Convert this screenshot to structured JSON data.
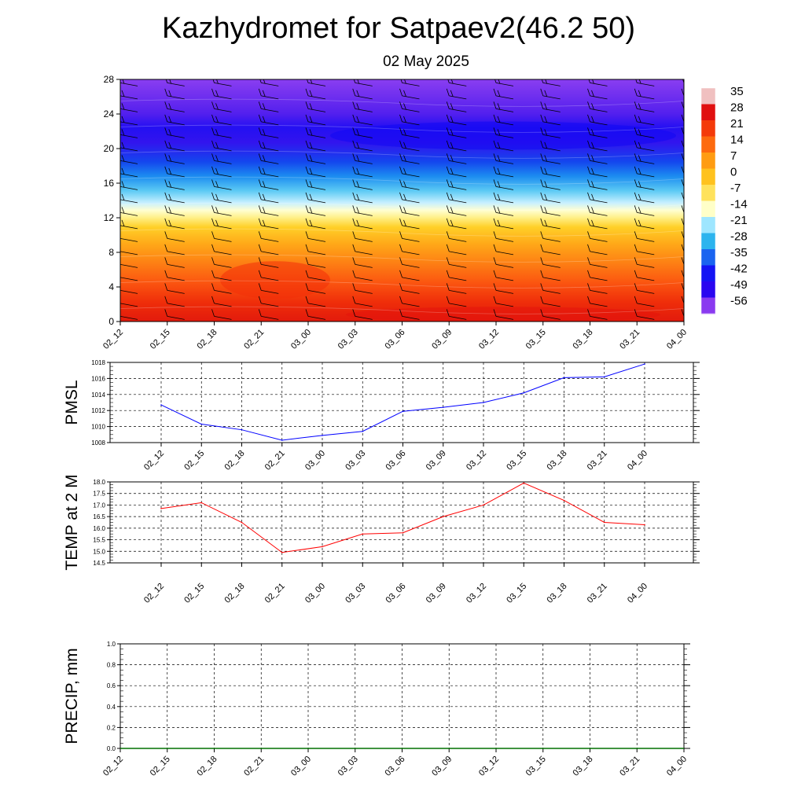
{
  "title": "Kazhydromet for Satpaev2(46.2 50)",
  "subtitle": "02 May 2025",
  "chart_data": [
    {
      "type": "heatmap",
      "name": "temperature-cross-section",
      "xlabel": "",
      "ylabel": "",
      "x_ticks": [
        "02_12",
        "02_15",
        "02_18",
        "02_21",
        "03_00",
        "03_03",
        "03_06",
        "03_09",
        "03_12",
        "03_15",
        "03_18",
        "03_21",
        "04_00"
      ],
      "y_ticks": [
        0,
        4,
        8,
        12,
        16,
        20,
        24,
        28
      ],
      "ylim": [
        0,
        28
      ],
      "colorbar_labels": [
        35,
        28,
        21,
        14,
        7,
        0,
        -7,
        -14,
        -21,
        -28,
        -35,
        -42,
        -49,
        -56
      ],
      "colorbar_colors": [
        "#f0c0c0",
        "#e01010",
        "#f43a0a",
        "#fd6a0e",
        "#ff9c12",
        "#ffc21e",
        "#ffe25c",
        "#ffffc8",
        "#9ee6ff",
        "#2cb4ee",
        "#1a64f0",
        "#1414f4",
        "#2a06f0",
        "#8a3af0"
      ],
      "wind_barbs": true
    },
    {
      "type": "line",
      "name": "pmsl",
      "ylabel": "PMSL",
      "categories": [
        "02_12",
        "02_15",
        "02_18",
        "02_21",
        "03_00",
        "03_03",
        "03_06",
        "03_09",
        "03_12",
        "03_15",
        "03_18",
        "03_21",
        "04_00"
      ],
      "values": [
        1012.7,
        1010.3,
        1009.6,
        1008.3,
        1008.9,
        1009.4,
        1011.9,
        1012.4,
        1013.0,
        1014.2,
        1016.1,
        1016.2,
        1017.8
      ],
      "ylim": [
        1008,
        1018
      ],
      "y_ticks": [
        1008,
        1010,
        1012,
        1014,
        1016,
        1018
      ],
      "color": "#0000ff",
      "grid": true
    },
    {
      "type": "line",
      "name": "temp2m",
      "ylabel": "TEMP at 2 M",
      "categories": [
        "02_12",
        "02_15",
        "02_18",
        "02_21",
        "03_00",
        "03_03",
        "03_06",
        "03_09",
        "03_12",
        "03_15",
        "03_18",
        "03_21",
        "04_00"
      ],
      "values": [
        16.85,
        17.1,
        16.25,
        14.95,
        15.2,
        15.75,
        15.8,
        16.5,
        17.0,
        17.95,
        17.2,
        16.25,
        16.15
      ],
      "ylim": [
        14.5,
        18.0
      ],
      "y_ticks": [
        "14.5",
        "15.0",
        "15.5",
        "16.0",
        "16.5",
        "17.0",
        "17.5",
        "18.0"
      ],
      "color": "#ff0000",
      "grid": true
    },
    {
      "type": "line",
      "name": "precip",
      "ylabel": "PRECIP, mm",
      "categories": [
        "02_12",
        "02_15",
        "02_18",
        "02_21",
        "03_00",
        "03_03",
        "03_06",
        "03_09",
        "03_12",
        "03_15",
        "03_18",
        "03_21",
        "04_00"
      ],
      "values": [
        0,
        0,
        0,
        0,
        0,
        0,
        0,
        0,
        0,
        0,
        0,
        0,
        0
      ],
      "ylim": [
        0,
        1.0
      ],
      "y_ticks": [
        "0.0",
        "0.2",
        "0.4",
        "0.6",
        "0.8",
        "1.0"
      ],
      "color": "#007000",
      "grid": true
    }
  ]
}
